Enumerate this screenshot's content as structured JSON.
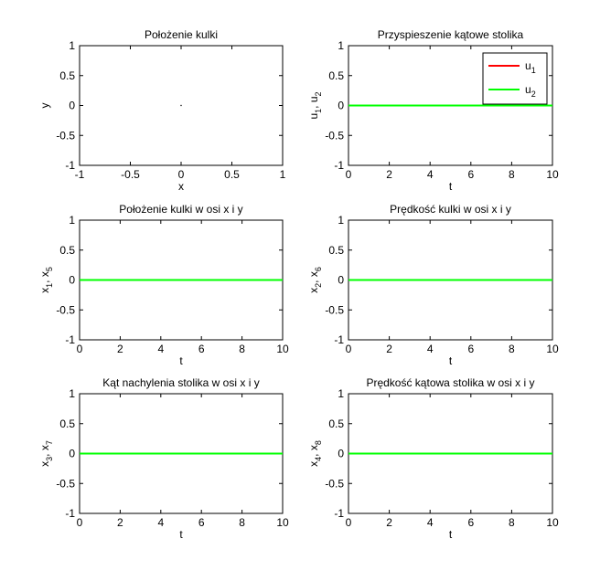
{
  "figure": {
    "background": "#ffffff",
    "axes_color": "#000000"
  },
  "chart_data": [
    {
      "type": "scatter",
      "title": "Położenie kulki",
      "xlabel": "x",
      "ylabel": "y",
      "xlim": [
        -1,
        1
      ],
      "ylim": [
        -1,
        1
      ],
      "xticks": [
        "-1",
        "-0.5",
        "0",
        "0.5",
        "1"
      ],
      "yticks": [
        "-1",
        "-0.5",
        "0",
        "0.5",
        "1"
      ],
      "xtick_values": [
        -1,
        -0.5,
        0,
        0.5,
        1
      ],
      "ytick_values": [
        -1,
        -0.5,
        0,
        0.5,
        1
      ],
      "grid": false,
      "series": [
        {
          "color": "#000000",
          "points": [
            [
              0,
              0
            ]
          ]
        }
      ]
    },
    {
      "type": "line",
      "title": "Przyspieszenie kątowe stolika",
      "xlabel": "t",
      "ylabel": {
        "main": "u",
        "sub1": "1",
        "sep": ", u",
        "sub2": "2"
      },
      "xlim": [
        0,
        10
      ],
      "ylim": [
        -1,
        1
      ],
      "xticks": [
        "0",
        "2",
        "4",
        "6",
        "8",
        "10"
      ],
      "yticks": [
        "-1",
        "-0.5",
        "0",
        "0.5",
        "1"
      ],
      "xtick_values": [
        0,
        2,
        4,
        6,
        8,
        10
      ],
      "ytick_values": [
        -1,
        -0.5,
        0,
        0.5,
        1
      ],
      "grid": false,
      "legend": "top-right",
      "series": [
        {
          "name": "u",
          "name_sub": "1",
          "color": "#ff0000",
          "x": [
            0,
            10
          ],
          "y": [
            0,
            0
          ]
        },
        {
          "name": "u",
          "name_sub": "2",
          "color": "#00ff00",
          "x": [
            0,
            10
          ],
          "y": [
            0,
            0
          ]
        }
      ]
    },
    {
      "type": "line",
      "title": "Położenie kulki w osi x i y",
      "xlabel": "t",
      "ylabel": {
        "main": "x",
        "sub1": "1",
        "sep": ", x",
        "sub2": "5"
      },
      "xlim": [
        0,
        10
      ],
      "ylim": [
        -1,
        1
      ],
      "xticks": [
        "0",
        "2",
        "4",
        "6",
        "8",
        "10"
      ],
      "yticks": [
        "-1",
        "-0.5",
        "0",
        "0.5",
        "1"
      ],
      "xtick_values": [
        0,
        2,
        4,
        6,
        8,
        10
      ],
      "ytick_values": [
        -1,
        -0.5,
        0,
        0.5,
        1
      ],
      "grid": false,
      "series": [
        {
          "color": "#ff0000",
          "x": [
            0,
            10
          ],
          "y": [
            0,
            0
          ]
        },
        {
          "color": "#00ff00",
          "x": [
            0,
            10
          ],
          "y": [
            0,
            0
          ]
        }
      ]
    },
    {
      "type": "line",
      "title": "Prędkość kulki w osi x i y",
      "xlabel": "t",
      "ylabel": {
        "main": "x",
        "sub1": "2",
        "sep": ", x",
        "sub2": "6"
      },
      "xlim": [
        0,
        10
      ],
      "ylim": [
        -1,
        1
      ],
      "xticks": [
        "0",
        "2",
        "4",
        "6",
        "8",
        "10"
      ],
      "yticks": [
        "-1",
        "-0.5",
        "0",
        "0.5",
        "1"
      ],
      "xtick_values": [
        0,
        2,
        4,
        6,
        8,
        10
      ],
      "ytick_values": [
        -1,
        -0.5,
        0,
        0.5,
        1
      ],
      "grid": false,
      "series": [
        {
          "color": "#ff0000",
          "x": [
            0,
            10
          ],
          "y": [
            0,
            0
          ]
        },
        {
          "color": "#00ff00",
          "x": [
            0,
            10
          ],
          "y": [
            0,
            0
          ]
        }
      ]
    },
    {
      "type": "line",
      "title": "Kąt nachylenia stolika w osi x i y",
      "xlabel": "t",
      "ylabel": {
        "main": "x",
        "sub1": "3",
        "sep": ", x",
        "sub2": "7"
      },
      "xlim": [
        0,
        10
      ],
      "ylim": [
        -1,
        1
      ],
      "xticks": [
        "0",
        "2",
        "4",
        "6",
        "8",
        "10"
      ],
      "yticks": [
        "-1",
        "-0.5",
        "0",
        "0.5",
        "1"
      ],
      "xtick_values": [
        0,
        2,
        4,
        6,
        8,
        10
      ],
      "ytick_values": [
        -1,
        -0.5,
        0,
        0.5,
        1
      ],
      "grid": false,
      "series": [
        {
          "color": "#ff0000",
          "x": [
            0,
            10
          ],
          "y": [
            0,
            0
          ]
        },
        {
          "color": "#00ff00",
          "x": [
            0,
            10
          ],
          "y": [
            0,
            0
          ]
        }
      ]
    },
    {
      "type": "line",
      "title": "Prędkość kątowa stolika w osi x i y",
      "xlabel": "t",
      "ylabel": {
        "main": "x",
        "sub1": "4",
        "sep": ", x",
        "sub2": "8"
      },
      "xlim": [
        0,
        10
      ],
      "ylim": [
        -1,
        1
      ],
      "xticks": [
        "0",
        "2",
        "4",
        "6",
        "8",
        "10"
      ],
      "yticks": [
        "-1",
        "-0.5",
        "0",
        "0.5",
        "1"
      ],
      "xtick_values": [
        0,
        2,
        4,
        6,
        8,
        10
      ],
      "ytick_values": [
        -1,
        -0.5,
        0,
        0.5,
        1
      ],
      "grid": false,
      "series": [
        {
          "color": "#ff0000",
          "x": [
            0,
            10
          ],
          "y": [
            0,
            0
          ]
        },
        {
          "color": "#00ff00",
          "x": [
            0,
            10
          ],
          "y": [
            0,
            0
          ]
        }
      ]
    }
  ]
}
